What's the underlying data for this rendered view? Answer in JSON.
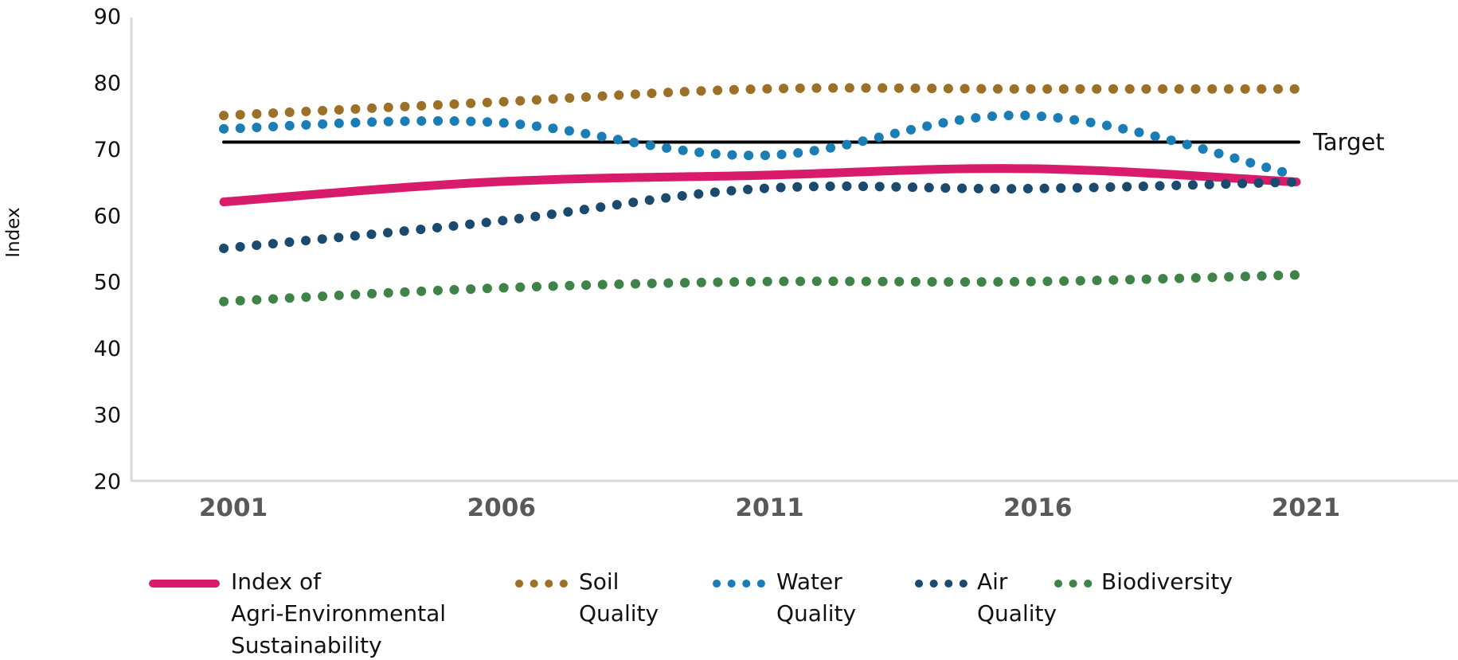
{
  "chart_data": {
    "type": "line",
    "title": "",
    "xlabel": "",
    "ylabel": "Index",
    "ylim": [
      20,
      90
    ],
    "yticks": [
      "20",
      "30",
      "40",
      "50",
      "60",
      "70",
      "80",
      "90"
    ],
    "x": [
      2001,
      2006,
      2011,
      2016,
      2021
    ],
    "xtick_labels": [
      "2001",
      "2006",
      "2011",
      "2016",
      "2021"
    ],
    "grid": false,
    "legend_position": "bottom",
    "target": {
      "value": 71,
      "label": "Target",
      "color": "#000000"
    },
    "series": [
      {
        "name": "Index of Agri-Environmental Sustainability",
        "legend_lines": [
          "Index of",
          "Agri-Environmental",
          "Sustainability"
        ],
        "style": "solid",
        "color": "#D81B6A",
        "values": [
          62,
          65,
          66,
          67,
          65
        ]
      },
      {
        "name": "Soil Quality",
        "legend_lines": [
          "Soil",
          "Quality"
        ],
        "style": "dotted",
        "color": "#9C7027",
        "values": [
          75,
          77,
          79,
          79,
          79
        ]
      },
      {
        "name": "Water Quality",
        "legend_lines": [
          "Water",
          "Quality"
        ],
        "style": "dotted",
        "color": "#1A7DB5",
        "values": [
          73,
          74,
          69,
          75,
          66
        ]
      },
      {
        "name": "Air Quality",
        "legend_lines": [
          "Air",
          "Quality"
        ],
        "style": "dotted",
        "color": "#1B4A6F",
        "values": [
          55,
          59,
          64,
          64,
          65
        ]
      },
      {
        "name": "Biodiversity",
        "legend_lines": [
          "Biodiversity"
        ],
        "style": "dotted",
        "color": "#3E8347",
        "values": [
          47,
          49,
          50,
          50,
          51
        ]
      }
    ]
  }
}
